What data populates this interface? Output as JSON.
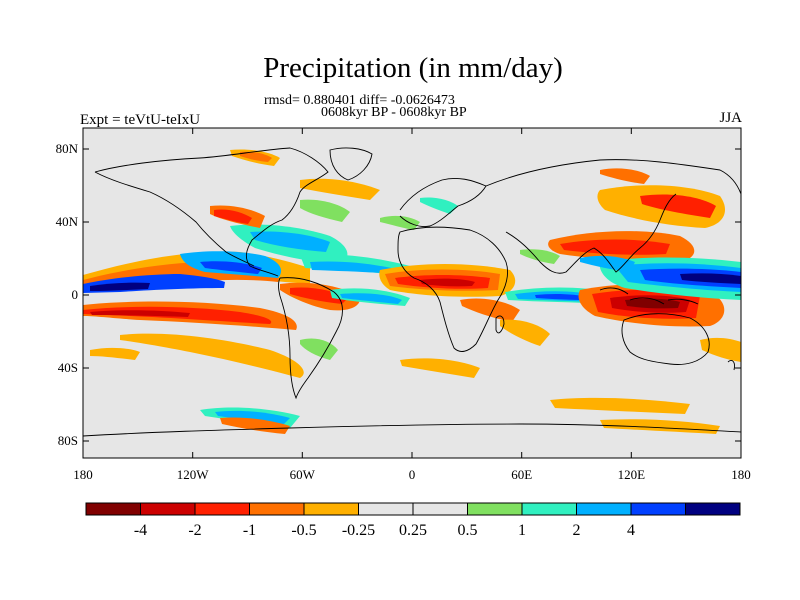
{
  "title": "Precipitation (in mm/day)",
  "stats_line": "rmsd= 0.880401 diff= -0.0626473",
  "period_line": "0608kyr BP - 0608kyr BP",
  "experiment_label": "Expt = teVtU-teIxU",
  "season_label": "JJA",
  "map": {
    "x_ticks": [
      "180",
      "120W",
      "60W",
      "0",
      "60E",
      "120E",
      "180"
    ],
    "y_ticks": [
      "80N",
      "40N",
      "0",
      "40S",
      "80S"
    ],
    "background_color": "#e6e6e6"
  },
  "colorbar": {
    "colors": [
      "#800000",
      "#cc0000",
      "#ff2000",
      "#ff7000",
      "#ffb000",
      "#e6e6e6",
      "#e6e6e6",
      "#80e060",
      "#30f0c0",
      "#00b0ff",
      "#0040ff",
      "#000080"
    ],
    "labels": [
      "-4",
      "-2",
      "-1",
      "-0.5",
      "-0.25",
      "0.25",
      "0.5",
      "1",
      "2",
      "4"
    ]
  }
}
